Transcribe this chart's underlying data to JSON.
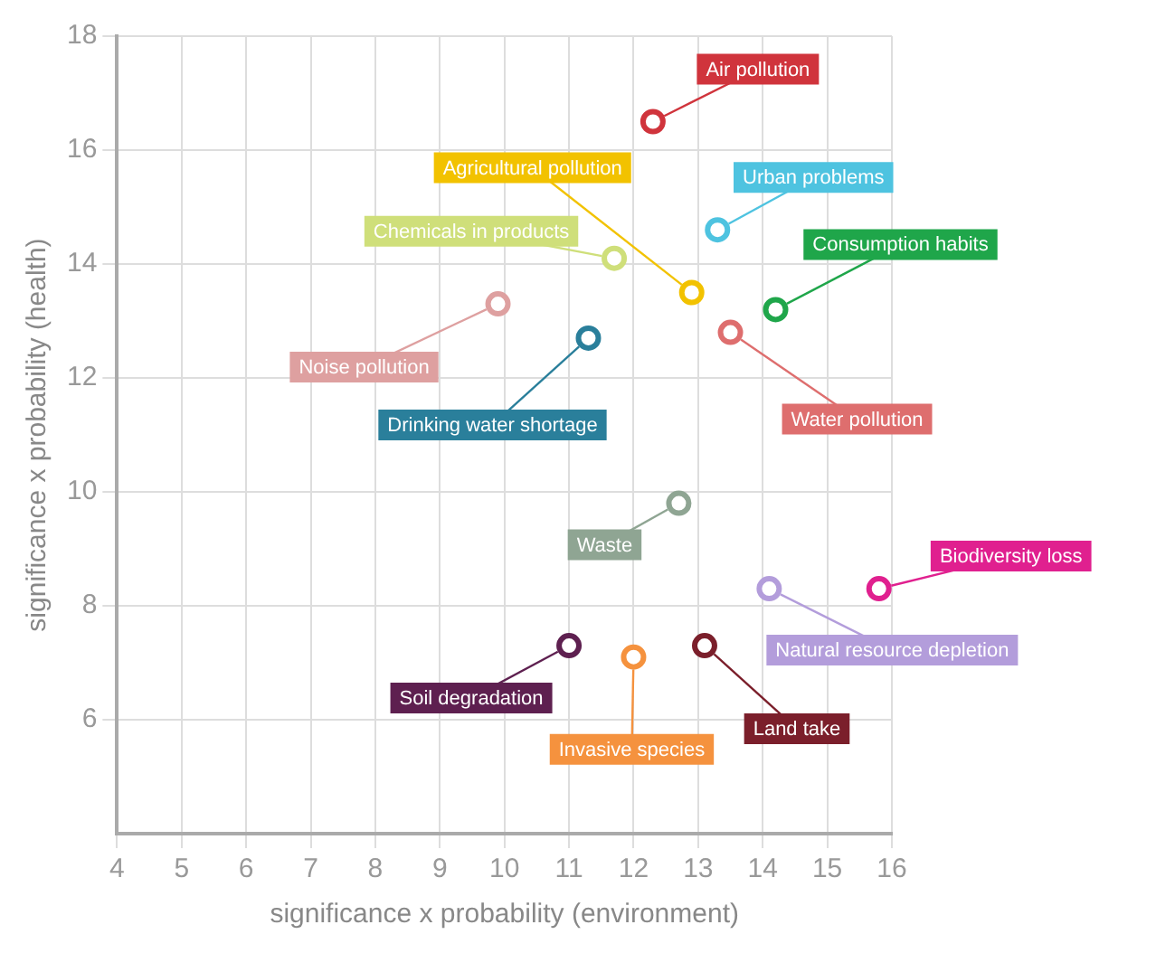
{
  "chart_data": {
    "type": "scatter",
    "xlabel": "significance x probability (environment)",
    "ylabel": "significance x probability (health)",
    "xlim": [
      4,
      16
    ],
    "xticks": [
      4,
      5,
      6,
      7,
      8,
      9,
      10,
      11,
      12,
      13,
      14,
      15,
      16
    ],
    "ylim": [
      4,
      18
    ],
    "yticks": [
      6,
      8,
      10,
      12,
      14,
      16,
      18
    ],
    "grid": true,
    "legend": false,
    "marker": "circle",
    "series": [
      {
        "name": "Air pollution",
        "color": "#d0343c",
        "x": [
          12.3
        ],
        "values": [
          16.5
        ]
      },
      {
        "name": "Agricultural pollution",
        "color": "#f2c200",
        "x": [
          12.9
        ],
        "values": [
          13.5
        ]
      },
      {
        "name": "Urban problems",
        "color": "#4ec3e0",
        "x": [
          13.3
        ],
        "values": [
          14.6
        ]
      },
      {
        "name": "Chemicals in products",
        "color": "#cfdf7a",
        "x": [
          11.7
        ],
        "values": [
          14.1
        ]
      },
      {
        "name": "Consumption habits",
        "color": "#1fa64a",
        "x": [
          14.2
        ],
        "values": [
          13.2
        ]
      },
      {
        "name": "Noise pollution",
        "color": "#dea0a0",
        "x": [
          9.9
        ],
        "values": [
          13.3
        ]
      },
      {
        "name": "Drinking water shortage",
        "color": "#2a7f9b",
        "x": [
          11.3
        ],
        "values": [
          12.7
        ]
      },
      {
        "name": "Water pollution",
        "color": "#de6e6e",
        "x": [
          13.5
        ],
        "values": [
          12.8
        ]
      },
      {
        "name": "Waste",
        "color": "#8fa593",
        "x": [
          12.7
        ],
        "values": [
          9.8
        ]
      },
      {
        "name": "Biodiversity loss",
        "color": "#e0208f",
        "x": [
          15.8
        ],
        "values": [
          8.3
        ]
      },
      {
        "name": "Natural resource depletion",
        "color": "#b39ddb",
        "x": [
          14.1
        ],
        "values": [
          8.3
        ]
      },
      {
        "name": "Soil degradation",
        "color": "#5e2050",
        "x": [
          11.0
        ],
        "values": [
          7.3
        ]
      },
      {
        "name": "Invasive species",
        "color": "#f5923e",
        "x": [
          12.0
        ],
        "values": [
          7.1
        ]
      },
      {
        "name": "Land take",
        "color": "#7b1f2b",
        "x": [
          13.1
        ],
        "values": [
          7.3
        ]
      }
    ]
  }
}
